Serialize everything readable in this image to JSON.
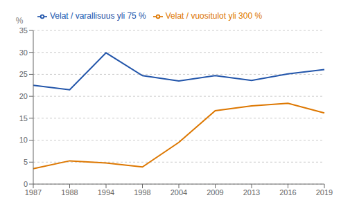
{
  "chart_data": {
    "type": "line",
    "y_label": "%",
    "categories": [
      "1987",
      "1988",
      "1994",
      "1998",
      "2004",
      "2009",
      "2013",
      "2016",
      "2019"
    ],
    "series": [
      {
        "name": "Velat / varallisuus yli 75 %",
        "color": "#2255aa",
        "values": [
          22.5,
          21.5,
          29.9,
          24.7,
          23.5,
          24.7,
          23.6,
          25.1,
          26.1
        ]
      },
      {
        "name": "Velat / vuositulot yli 300 %",
        "color": "#dd7700",
        "values": [
          3.5,
          5.3,
          4.8,
          3.9,
          9.5,
          16.7,
          17.8,
          18.4,
          16.2
        ]
      }
    ],
    "ylim": [
      0,
      35
    ],
    "yticks": [
      0,
      5,
      10,
      15,
      20,
      25,
      30,
      35
    ],
    "grid": true,
    "legend": "upper left"
  }
}
